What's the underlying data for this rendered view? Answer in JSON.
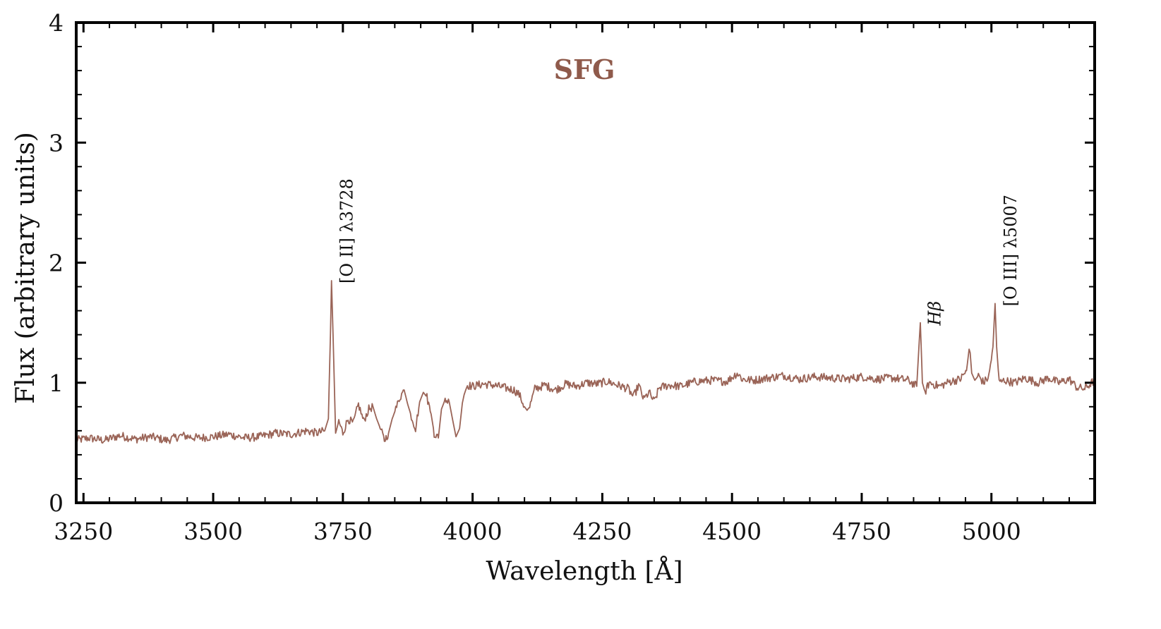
{
  "chart_data": {
    "type": "line",
    "title": "SFG",
    "xlabel": "Wavelength [Å]",
    "ylabel": "Flux (arbitrary units)",
    "xlim": [
      3236,
      5199
    ],
    "ylim": [
      0,
      4
    ],
    "xticks": [
      3250,
      3500,
      3750,
      4000,
      4250,
      4500,
      4750,
      5000
    ],
    "xtick_labels": [
      "3250",
      "3500",
      "3750",
      "4000",
      "4250",
      "4500",
      "4750",
      "5000"
    ],
    "yticks": [
      0,
      1,
      2,
      3,
      4
    ],
    "ytick_labels": [
      "0",
      "1",
      "2",
      "3",
      "4"
    ],
    "x_minor_step": 50,
    "y_minor_step": 0.2,
    "grid": false,
    "legend": "none",
    "series": [
      {
        "name": "SFG spectrum",
        "color": "#9a6457",
        "x": [
          3236,
          3260,
          3290,
          3320,
          3350,
          3380,
          3410,
          3440,
          3470,
          3500,
          3530,
          3560,
          3590,
          3620,
          3650,
          3680,
          3700,
          3715,
          3722,
          3726,
          3728,
          3731,
          3736,
          3742,
          3750,
          3760,
          3770,
          3780,
          3790,
          3800,
          3808,
          3815,
          3822,
          3830,
          3838,
          3845,
          3852,
          3860,
          3868,
          3875,
          3882,
          3890,
          3898,
          3905,
          3912,
          3920,
          3926,
          3934,
          3940,
          3947,
          3955,
          3962,
          3968,
          3975,
          3982,
          3990,
          4000,
          4020,
          4040,
          4060,
          4080,
          4090,
          4100,
          4105,
          4110,
          4120,
          4140,
          4160,
          4180,
          4200,
          4220,
          4240,
          4260,
          4280,
          4300,
          4310,
          4320,
          4330,
          4340,
          4350,
          4360,
          4380,
          4400,
          4430,
          4460,
          4490,
          4510,
          4520,
          4540,
          4570,
          4600,
          4630,
          4660,
          4690,
          4720,
          4750,
          4780,
          4810,
          4840,
          4856,
          4861,
          4863,
          4867,
          4872,
          4880,
          4900,
          4920,
          4940,
          4952,
          4957,
          4959,
          4962,
          4968,
          4975,
          4985,
          4995,
          5003,
          5007,
          5010,
          5015,
          5025,
          5045,
          5065,
          5090,
          5110,
          5130,
          5150,
          5165,
          5180,
          5199
        ],
        "y": [
          0.52,
          0.54,
          0.52,
          0.56,
          0.53,
          0.55,
          0.52,
          0.56,
          0.54,
          0.55,
          0.57,
          0.54,
          0.55,
          0.58,
          0.57,
          0.6,
          0.58,
          0.6,
          0.7,
          1.4,
          1.85,
          1.4,
          0.58,
          0.68,
          0.58,
          0.7,
          0.66,
          0.82,
          0.68,
          0.78,
          0.8,
          0.7,
          0.62,
          0.52,
          0.58,
          0.7,
          0.78,
          0.88,
          0.94,
          0.82,
          0.72,
          0.62,
          0.84,
          0.92,
          0.88,
          0.74,
          0.58,
          0.54,
          0.78,
          0.86,
          0.84,
          0.68,
          0.55,
          0.62,
          0.9,
          0.98,
          0.97,
          0.99,
          0.98,
          0.96,
          0.94,
          0.9,
          0.8,
          0.77,
          0.8,
          0.95,
          0.98,
          0.94,
          0.99,
          0.97,
          1.0,
          0.99,
          1.01,
          0.98,
          0.95,
          0.88,
          0.98,
          0.86,
          0.92,
          0.84,
          0.96,
          0.98,
          0.97,
          1.01,
          1.02,
          1.01,
          1.08,
          1.03,
          1.02,
          1.04,
          1.06,
          1.03,
          1.05,
          1.04,
          1.03,
          1.05,
          1.03,
          1.04,
          1.02,
          0.97,
          1.35,
          1.5,
          1.0,
          0.92,
          1.0,
          0.97,
          1.01,
          1.03,
          1.1,
          1.28,
          1.25,
          1.08,
          1.02,
          1.06,
          1.0,
          1.05,
          1.3,
          1.66,
          1.3,
          1.0,
          1.02,
          1.0,
          1.04,
          1.0,
          1.04,
          1.0,
          1.03,
          0.96,
          0.95,
          1.02
        ]
      }
    ],
    "annotations": [
      {
        "text": "[O II] λ3728",
        "x": 3728,
        "y": 1.85,
        "rotation": "vertical"
      },
      {
        "text": "Hβ",
        "x": 4861,
        "y": 1.5,
        "rotation": "vertical",
        "style": "italic"
      },
      {
        "text": "[O III] λ5007",
        "x": 5007,
        "y": 1.66,
        "rotation": "vertical"
      }
    ]
  },
  "style": {
    "line_color": "#9a6457",
    "title_color": "#8f5a4b",
    "axis_color": "#000000"
  }
}
